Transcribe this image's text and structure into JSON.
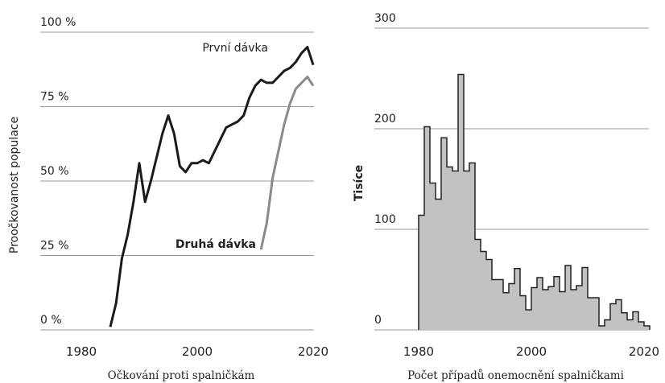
{
  "chart_data": [
    {
      "type": "line",
      "xlabel": "Očkování proti spalničkám",
      "ylabel": "Proočkovanost populace",
      "xlim": [
        1980,
        2020
      ],
      "xticks": [
        1980,
        2000,
        2020
      ],
      "ylim": [
        0,
        100
      ],
      "yticks": [
        {
          "value": 0,
          "label": "0 %"
        },
        {
          "value": 25,
          "label": "25 %"
        },
        {
          "value": 50,
          "label": "50 %"
        },
        {
          "value": 75,
          "label": "75 %"
        },
        {
          "value": 100,
          "label": "100 %"
        }
      ],
      "grid": true,
      "x": [
        1985,
        1986,
        1987,
        1988,
        1989,
        1990,
        1991,
        1992,
        1993,
        1994,
        1995,
        1996,
        1997,
        1998,
        1999,
        2000,
        2001,
        2002,
        2003,
        2004,
        2005,
        2006,
        2007,
        2008,
        2009,
        2010,
        2011,
        2012,
        2013,
        2014,
        2015,
        2016,
        2017,
        2018,
        2019,
        2020
      ],
      "series": [
        {
          "name": "První dávka",
          "color": "#1a1a1a",
          "values": [
            1,
            9,
            24,
            32,
            43,
            56,
            43,
            50,
            58,
            66,
            72,
            66,
            55,
            53,
            56,
            56,
            57,
            56,
            60,
            64,
            68,
            69,
            70,
            72,
            78,
            82,
            84,
            83,
            83,
            85,
            87,
            88,
            90,
            93,
            95,
            89
          ]
        },
        {
          "name": "Druhá dávka",
          "color": "#8a8a8a",
          "values": [
            null,
            null,
            null,
            null,
            null,
            null,
            null,
            null,
            null,
            null,
            null,
            null,
            null,
            null,
            null,
            null,
            null,
            null,
            null,
            null,
            null,
            null,
            null,
            null,
            null,
            null,
            27,
            36,
            51,
            60,
            69,
            76,
            81,
            83,
            85,
            82
          ]
        }
      ]
    },
    {
      "type": "histogram",
      "xlabel": "Počet případů onemocnění spalničkami",
      "ylabel": "Tisíce",
      "xlim": [
        1980,
        2020
      ],
      "xticks": [
        1980,
        2000,
        2020
      ],
      "ylim": [
        0,
        300
      ],
      "yticks": [
        0,
        100,
        200,
        300
      ],
      "grid": true,
      "color": "#c2c2c2",
      "bins": [
        1980,
        1981,
        1982,
        1983,
        1984,
        1985,
        1986,
        1987,
        1988,
        1989,
        1990,
        1991,
        1992,
        1993,
        1994,
        1995,
        1996,
        1997,
        1998,
        1999,
        2000,
        2001,
        2002,
        2003,
        2004,
        2005,
        2006,
        2007,
        2008,
        2009,
        2010,
        2011,
        2012,
        2013,
        2014,
        2015,
        2016,
        2017,
        2018,
        2019,
        2020,
        2021
      ],
      "values": [
        114,
        202,
        146,
        130,
        191,
        162,
        158,
        254,
        158,
        166,
        90,
        78,
        70,
        50,
        50,
        37,
        46,
        61,
        34,
        20,
        42,
        52,
        40,
        43,
        53,
        38,
        64,
        40,
        44,
        62,
        32,
        32,
        4,
        10,
        26,
        30,
        17,
        10,
        18,
        8,
        4
      ]
    }
  ]
}
